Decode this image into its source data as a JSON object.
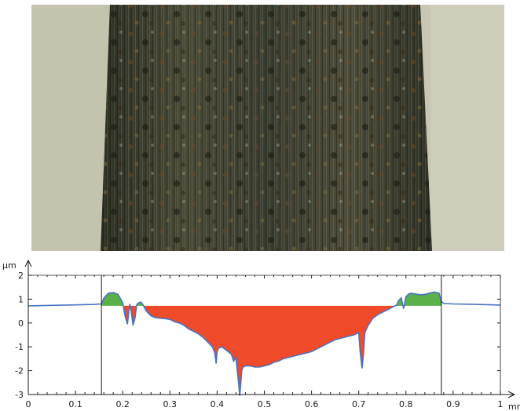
{
  "figure": {
    "micrograph_icon": "wear-track-micrograph",
    "colors": {
      "background_metal": "#c9c7b3",
      "wear_track": "#3a3a2a",
      "profile_line": "#4a72c4",
      "material_pileup": "#5ab14a",
      "material_removed": "#ef4a2a",
      "axis": "#1a1a1a"
    }
  },
  "chart_data": {
    "type": "area",
    "title": "",
    "xlabel": "",
    "ylabel": "",
    "x_unit": "mm",
    "y_unit": "µm",
    "xlim": [
      0,
      1
    ],
    "ylim": [
      -3,
      2
    ],
    "x_ticks": [
      "0",
      "0.1",
      "0.2",
      "0.3",
      "0.4",
      "0.5",
      "0.6",
      "0.7",
      "0.8",
      "0.9",
      "1"
    ],
    "y_ticks": [
      "2",
      "1",
      "0",
      "-1",
      "-2",
      "-3"
    ],
    "reference_level": 0.72,
    "track_edges_x": [
      0.155,
      0.875
    ],
    "series": [
      {
        "x": [
          0,
          0.05,
          0.1,
          0.14,
          0.155,
          0.16,
          0.17,
          0.18,
          0.19,
          0.2,
          0.205,
          0.21,
          0.215,
          0.218,
          0.222,
          0.226,
          0.23,
          0.234,
          0.238,
          0.242,
          0.25,
          0.26,
          0.27,
          0.28,
          0.29,
          0.3,
          0.31,
          0.32,
          0.33,
          0.34,
          0.35,
          0.36,
          0.37,
          0.38,
          0.39,
          0.395,
          0.398,
          0.4,
          0.403,
          0.41,
          0.42,
          0.43,
          0.435,
          0.44,
          0.443,
          0.446,
          0.448,
          0.45,
          0.452,
          0.455,
          0.46,
          0.47,
          0.48,
          0.49,
          0.5,
          0.51,
          0.52,
          0.53,
          0.54,
          0.55,
          0.56,
          0.57,
          0.58,
          0.59,
          0.6,
          0.61,
          0.62,
          0.63,
          0.64,
          0.65,
          0.66,
          0.67,
          0.68,
          0.69,
          0.7,
          0.703,
          0.707,
          0.71,
          0.713,
          0.72,
          0.73,
          0.74,
          0.75,
          0.76,
          0.77,
          0.78,
          0.785,
          0.79,
          0.795,
          0.8,
          0.805,
          0.81,
          0.82,
          0.83,
          0.84,
          0.85,
          0.86,
          0.87,
          0.875,
          0.88,
          0.9,
          0.95,
          1.0
        ],
        "y": [
          0.72,
          0.74,
          0.76,
          0.78,
          0.8,
          1.05,
          1.25,
          1.28,
          1.2,
          0.85,
          0.3,
          -0.05,
          0.8,
          0.5,
          -0.1,
          0.2,
          0.78,
          0.85,
          0.88,
          0.8,
          0.5,
          0.3,
          0.22,
          0.2,
          0.18,
          0.15,
          0.05,
          0.0,
          -0.1,
          -0.25,
          -0.35,
          -0.45,
          -0.6,
          -0.8,
          -1.0,
          -1.25,
          -1.7,
          -1.2,
          -1.05,
          -1.0,
          -1.15,
          -1.3,
          -1.6,
          -1.45,
          -2.05,
          -2.6,
          -3.05,
          -2.6,
          -2.0,
          -1.85,
          -1.8,
          -1.8,
          -1.85,
          -1.85,
          -1.8,
          -1.75,
          -1.65,
          -1.6,
          -1.5,
          -1.45,
          -1.4,
          -1.35,
          -1.3,
          -1.25,
          -1.2,
          -1.1,
          -1.0,
          -0.9,
          -0.8,
          -0.7,
          -0.65,
          -0.6,
          -0.55,
          -0.5,
          -0.4,
          -1.2,
          -1.9,
          -1.3,
          -0.4,
          -0.1,
          0.2,
          0.35,
          0.45,
          0.55,
          0.65,
          0.75,
          0.95,
          1.05,
          0.6,
          1.1,
          1.2,
          1.25,
          1.22,
          1.18,
          1.2,
          1.25,
          1.3,
          1.25,
          0.9,
          0.82,
          0.8,
          0.78,
          0.75
        ]
      }
    ],
    "grid": false,
    "legend": "none"
  }
}
